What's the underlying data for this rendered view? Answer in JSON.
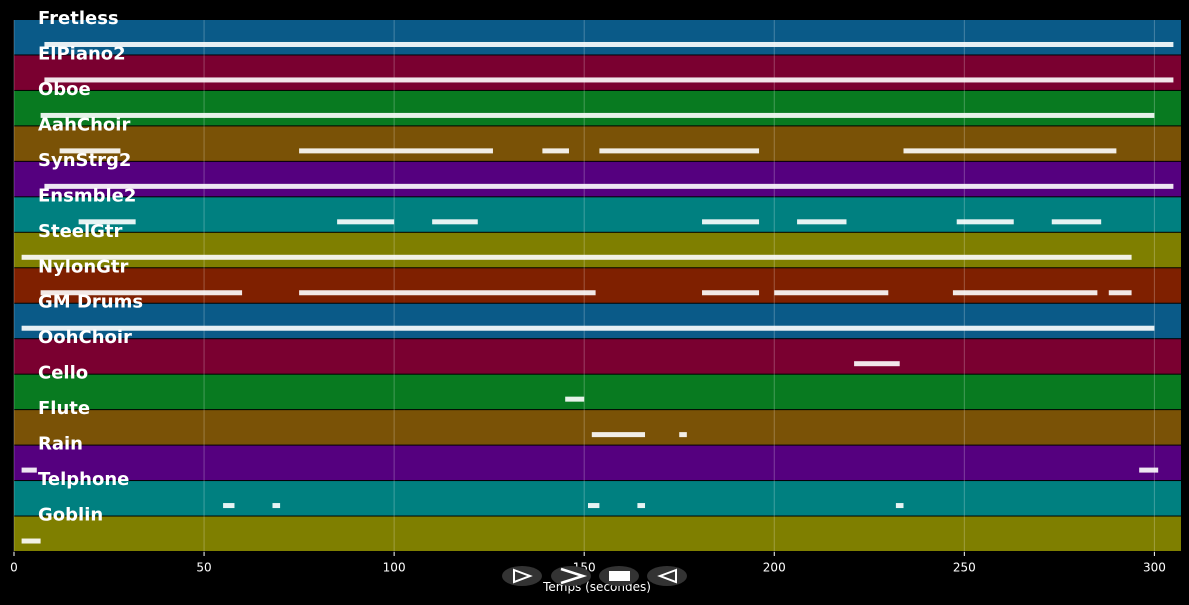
{
  "chart_data": {
    "type": "pianoroll",
    "xlabel": "Temps (secondes)",
    "xlim": [
      0,
      307
    ],
    "xticks": [
      0,
      50,
      100,
      150,
      200,
      250,
      300
    ],
    "grid": true,
    "tracks": [
      {
        "name": "Fretless",
        "color": "#0a5a88",
        "segments": [
          [
            8,
            305
          ]
        ]
      },
      {
        "name": "ElPiano2",
        "color": "#7a0030",
        "segments": [
          [
            8,
            305
          ]
        ]
      },
      {
        "name": "Oboe",
        "color": "#087a20",
        "segments": [
          [
            7,
            300
          ]
        ]
      },
      {
        "name": "AahChoir",
        "color": "#7a5206",
        "segments": [
          [
            12,
            28
          ],
          [
            75,
            126
          ],
          [
            139,
            146
          ],
          [
            154,
            196
          ],
          [
            234,
            290
          ]
        ]
      },
      {
        "name": "SynStrg2",
        "color": "#55007f",
        "segments": [
          [
            8,
            305
          ]
        ]
      },
      {
        "name": "Ensmble2",
        "color": "#008080",
        "segments": [
          [
            17,
            32
          ],
          [
            85,
            100
          ],
          [
            110,
            122
          ],
          [
            181,
            196
          ],
          [
            206,
            219
          ],
          [
            248,
            263
          ],
          [
            273,
            286
          ]
        ]
      },
      {
        "name": "SteelGtr",
        "color": "#7f7f00",
        "segments": [
          [
            2,
            294
          ]
        ]
      },
      {
        "name": "NylonGtr",
        "color": "#7f2000",
        "segments": [
          [
            7,
            60
          ],
          [
            75,
            153
          ],
          [
            181,
            196
          ],
          [
            200,
            230
          ],
          [
            247,
            285
          ],
          [
            288,
            294
          ]
        ]
      },
      {
        "name": "GM Drums",
        "color": "#0a5a88",
        "segments": [
          [
            2,
            300
          ]
        ]
      },
      {
        "name": "OohChoir",
        "color": "#7a0030",
        "segments": [
          [
            221,
            233
          ]
        ]
      },
      {
        "name": "Cello",
        "color": "#087a20",
        "segments": [
          [
            145,
            150
          ]
        ]
      },
      {
        "name": "Flute",
        "color": "#7a5206",
        "segments": [
          [
            152,
            166
          ],
          [
            175,
            177
          ]
        ]
      },
      {
        "name": "Rain",
        "color": "#55007f",
        "segments": [
          [
            2,
            6
          ],
          [
            296,
            301
          ]
        ]
      },
      {
        "name": "Telphone",
        "color": "#008080",
        "segments": [
          [
            55,
            58
          ],
          [
            68,
            70
          ],
          [
            151,
            154
          ],
          [
            164,
            166
          ],
          [
            232,
            234
          ]
        ]
      },
      {
        "name": "Goblin",
        "color": "#7f7f00",
        "segments": [
          [
            2,
            7
          ]
        ]
      }
    ]
  }
}
